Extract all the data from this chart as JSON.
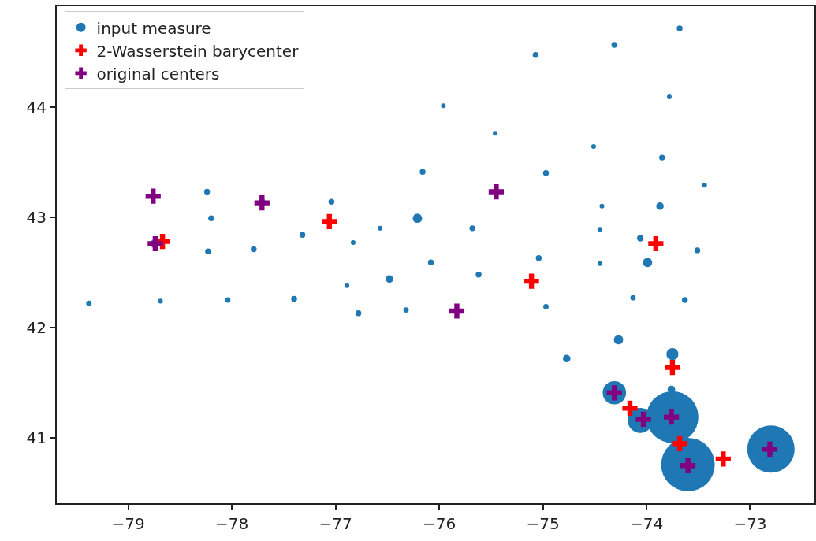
{
  "chart_data": {
    "type": "bubble",
    "legend": "top left",
    "grid": false,
    "xlim": [
      -79.69,
      -72.38
    ],
    "ylim": [
      40.41,
      44.91
    ],
    "xticks": [
      {
        "value": -79,
        "label": "−79"
      },
      {
        "value": -78,
        "label": "−78"
      },
      {
        "value": -77,
        "label": "−77"
      },
      {
        "value": -76,
        "label": "−76"
      },
      {
        "value": -75,
        "label": "−75"
      },
      {
        "value": -74,
        "label": "−74"
      },
      {
        "value": -73,
        "label": "−73"
      }
    ],
    "yticks": [
      41,
      42,
      43,
      44
    ],
    "series": [
      {
        "name": "input measure",
        "type": "bubble",
        "marker": "circle",
        "color": "#1f77b4",
        "x": [
          -78.24,
          -78.2,
          -78.23,
          -77.79,
          -77.32,
          -77.04,
          -76.83,
          -76.57,
          -76.21,
          -76.16,
          -76.08,
          -78.74,
          -77.71,
          -73.68,
          -74.31,
          -75.07,
          -73.78,
          -75.96,
          -75.46,
          -74.51,
          -73.85,
          -74.97,
          -73.44,
          -74.43,
          -73.87,
          -75.68,
          -74.45,
          -74.06,
          -73.51,
          -75.04,
          -74.45,
          -73.99,
          -79.38,
          -78.69,
          -78.04,
          -77.4,
          -76.89,
          -76.48,
          -76.78,
          -76.32,
          -75.62,
          -74.97,
          -74.13,
          -73.63,
          -74.27,
          -74.77,
          -73.75,
          -73.76,
          -74.31,
          -74.06,
          -73.75,
          -73.6,
          -72.8
        ],
        "values": [
          43.23,
          42.99,
          42.69,
          42.71,
          42.84,
          43.14,
          42.77,
          42.9,
          42.99,
          43.41,
          42.59,
          42.76,
          43.14,
          44.71,
          44.56,
          44.47,
          44.09,
          44.01,
          43.76,
          43.64,
          43.54,
          43.4,
          43.29,
          43.1,
          43.1,
          42.9,
          42.89,
          42.81,
          42.7,
          42.63,
          42.58,
          42.59,
          42.22,
          42.24,
          42.25,
          42.26,
          42.38,
          42.44,
          42.13,
          42.16,
          42.48,
          42.19,
          42.27,
          42.25,
          41.89,
          41.72,
          41.76,
          41.44,
          41.41,
          41.16,
          41.19,
          40.76,
          40.9
        ],
        "sizes": [
          0.012,
          0.012,
          0.012,
          0.012,
          0.012,
          0.012,
          0.008,
          0.008,
          0.03,
          0.012,
          0.012,
          0.03,
          0.015,
          0.012,
          0.012,
          0.012,
          0.008,
          0.008,
          0.008,
          0.008,
          0.012,
          0.012,
          0.008,
          0.008,
          0.02,
          0.012,
          0.008,
          0.015,
          0.012,
          0.012,
          0.008,
          0.03,
          0.01,
          0.008,
          0.01,
          0.012,
          0.008,
          0.02,
          0.012,
          0.01,
          0.012,
          0.01,
          0.01,
          0.012,
          0.03,
          0.02,
          0.05,
          0.02,
          0.19,
          0.22,
          0.94,
          1,
          0.78
        ]
      },
      {
        "name": "2-Wasserstein barycenter",
        "type": "scatter",
        "marker": "cross",
        "color": "#ff0000",
        "x": [
          -78.67,
          -77.06,
          -75.11,
          -73.91,
          -73.75,
          -74.16,
          -73.68,
          -73.26
        ],
        "values": [
          42.78,
          42.96,
          42.42,
          42.76,
          41.64,
          41.27,
          40.95,
          40.81
        ]
      },
      {
        "name": "original centers",
        "type": "scatter",
        "marker": "cross",
        "color": "#800080",
        "x": [
          -78.76,
          -77.71,
          -78.74,
          -75.45,
          -75.83,
          -74.31,
          -74.03,
          -73.76,
          -73.6,
          -72.81
        ],
        "values": [
          43.19,
          43.13,
          42.76,
          43.23,
          42.15,
          41.41,
          41.17,
          41.19,
          40.75,
          40.9
        ]
      }
    ]
  }
}
